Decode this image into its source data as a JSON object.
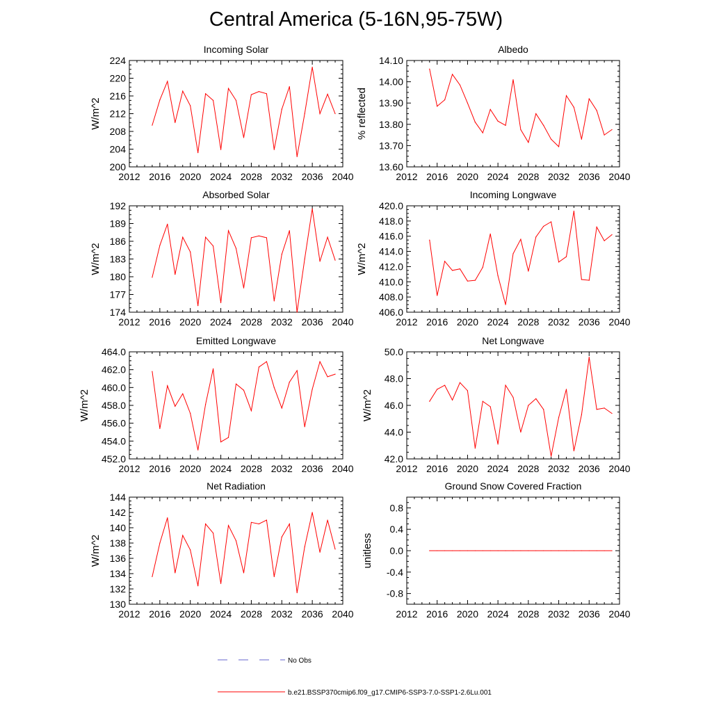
{
  "figure": {
    "title": "Central America (5-16N,95-75W)",
    "legend": {
      "entries": [
        {
          "label": "No Obs",
          "color": "#6666cc",
          "style": "dashed"
        },
        {
          "label": "b.e21.BSSP370cmip6.f09_g17.CMIP6-SSP3-7.0-SSP1-2.6Lu.001",
          "color": "#ff0000",
          "style": "solid"
        }
      ]
    }
  },
  "chart_data": [
    {
      "type": "line",
      "title": "Incoming Solar",
      "ylabel": "W/m^2",
      "xlim": [
        2012,
        2040
      ],
      "ylim": [
        200,
        224
      ],
      "xticks": [
        "2012",
        "2016",
        "2020",
        "2024",
        "2028",
        "2032",
        "2036",
        "2040"
      ],
      "yticks": [
        "200",
        "204",
        "208",
        "212",
        "216",
        "220",
        "224"
      ],
      "color": "#ff0000",
      "x": [
        2015,
        2016,
        2017,
        2018,
        2019,
        2020,
        2021,
        2022,
        2023,
        2024,
        2025,
        2026,
        2027,
        2028,
        2029,
        2030,
        2031,
        2032,
        2033,
        2034,
        2035,
        2036,
        2037,
        2038,
        2039
      ],
      "values": [
        209.4,
        215.1,
        219.3,
        210.0,
        217.1,
        213.8,
        203.2,
        216.5,
        215.0,
        203.9,
        217.7,
        215.0,
        206.6,
        216.3,
        217.0,
        216.5,
        203.9,
        213.0,
        218.1,
        202.3,
        212.0,
        222.5,
        212.0,
        216.4,
        212.0
      ]
    },
    {
      "type": "line",
      "title": "Albedo",
      "ylabel": "% reflected",
      "xlim": [
        2012,
        2040
      ],
      "ylim": [
        13.6,
        14.1
      ],
      "xticks": [
        "2012",
        "2016",
        "2020",
        "2024",
        "2028",
        "2032",
        "2036",
        "2040"
      ],
      "yticks": [
        "13.60",
        "13.70",
        "13.80",
        "13.90",
        "14.00",
        "14.10"
      ],
      "color": "#ff0000",
      "x": [
        2015,
        2016,
        2017,
        2018,
        2019,
        2020,
        2021,
        2022,
        2023,
        2024,
        2025,
        2026,
        2027,
        2028,
        2029,
        2030,
        2031,
        2032,
        2033,
        2034,
        2035,
        2036,
        2037,
        2038,
        2039
      ],
      "values": [
        14.06,
        13.885,
        13.915,
        14.035,
        13.985,
        13.9,
        13.81,
        13.76,
        13.87,
        13.815,
        13.795,
        14.01,
        13.775,
        13.715,
        13.85,
        13.795,
        13.73,
        13.695,
        13.935,
        13.88,
        13.73,
        13.92,
        13.865,
        13.75,
        13.775
      ]
    },
    {
      "type": "line",
      "title": "Absorbed Solar",
      "ylabel": "W/m^2",
      "xlim": [
        2012,
        2040
      ],
      "ylim": [
        174,
        192
      ],
      "xticks": [
        "2012",
        "2016",
        "2020",
        "2024",
        "2028",
        "2032",
        "2036",
        "2040"
      ],
      "yticks": [
        "174",
        "177",
        "180",
        "183",
        "186",
        "189",
        "192"
      ],
      "color": "#ff0000",
      "x": [
        2015,
        2016,
        2017,
        2018,
        2019,
        2020,
        2021,
        2022,
        2023,
        2024,
        2025,
        2026,
        2027,
        2028,
        2029,
        2030,
        2031,
        2032,
        2033,
        2034,
        2035,
        2036,
        2037,
        2038,
        2039
      ],
      "values": [
        179.9,
        185.3,
        188.9,
        180.4,
        186.7,
        184.2,
        175.1,
        186.7,
        185.2,
        175.6,
        187.8,
        184.8,
        178.1,
        186.6,
        186.9,
        186.6,
        175.9,
        183.8,
        187.8,
        174.0,
        183.0,
        191.5,
        182.6,
        186.7,
        182.8
      ]
    },
    {
      "type": "line",
      "title": "Incoming Longwave",
      "ylabel": "W/m^2",
      "xlim": [
        2012,
        2040
      ],
      "ylim": [
        406,
        420
      ],
      "xticks": [
        "2012",
        "2016",
        "2020",
        "2024",
        "2028",
        "2032",
        "2036",
        "2040"
      ],
      "yticks": [
        "406.0",
        "408.0",
        "410.0",
        "412.0",
        "414.0",
        "416.0",
        "418.0",
        "420.0"
      ],
      "color": "#ff0000",
      "x": [
        2015,
        2016,
        2017,
        2018,
        2019,
        2020,
        2021,
        2022,
        2023,
        2024,
        2025,
        2026,
        2027,
        2028,
        2029,
        2030,
        2031,
        2032,
        2033,
        2034,
        2035,
        2036,
        2037,
        2038,
        2039
      ],
      "values": [
        415.5,
        408.2,
        412.7,
        411.5,
        411.7,
        410.1,
        410.2,
        411.9,
        416.3,
        410.8,
        407.0,
        413.7,
        415.6,
        411.4,
        415.9,
        417.3,
        417.9,
        412.6,
        413.3,
        419.3,
        410.3,
        410.2,
        417.2,
        415.4,
        416.2
      ]
    },
    {
      "type": "line",
      "title": "Emitted Longwave",
      "ylabel": "W/m^2",
      "xlim": [
        2012,
        2040
      ],
      "ylim": [
        452,
        464
      ],
      "xticks": [
        "2012",
        "2016",
        "2020",
        "2024",
        "2028",
        "2032",
        "2036",
        "2040"
      ],
      "yticks": [
        "452.0",
        "454.0",
        "456.0",
        "458.0",
        "460.0",
        "462.0",
        "464.0"
      ],
      "color": "#ff0000",
      "x": [
        2015,
        2016,
        2017,
        2018,
        2019,
        2020,
        2021,
        2022,
        2023,
        2024,
        2025,
        2026,
        2027,
        2028,
        2029,
        2030,
        2031,
        2032,
        2033,
        2034,
        2035,
        2036,
        2037,
        2038,
        2039
      ],
      "values": [
        461.8,
        455.4,
        460.2,
        457.9,
        459.3,
        457.1,
        453.0,
        458.1,
        462.1,
        453.9,
        454.4,
        460.4,
        459.7,
        457.4,
        462.3,
        462.9,
        460.0,
        457.7,
        460.6,
        461.9,
        455.6,
        459.8,
        462.9,
        461.2,
        461.5
      ]
    },
    {
      "type": "line",
      "title": "Net Longwave",
      "ylabel": "W/m^2",
      "xlim": [
        2012,
        2040
      ],
      "ylim": [
        42,
        50
      ],
      "xticks": [
        "2012",
        "2016",
        "2020",
        "2024",
        "2028",
        "2032",
        "2036",
        "2040"
      ],
      "yticks": [
        "42.0",
        "44.0",
        "46.0",
        "48.0",
        "50.0"
      ],
      "color": "#ff0000",
      "x": [
        2015,
        2016,
        2017,
        2018,
        2019,
        2020,
        2021,
        2022,
        2023,
        2024,
        2025,
        2026,
        2027,
        2028,
        2029,
        2030,
        2031,
        2032,
        2033,
        2034,
        2035,
        2036,
        2037,
        2038,
        2039
      ],
      "values": [
        46.3,
        47.2,
        47.5,
        46.4,
        47.7,
        47.1,
        42.8,
        46.3,
        45.9,
        43.1,
        47.5,
        46.6,
        44.0,
        46.0,
        46.5,
        45.7,
        42.2,
        45.1,
        47.2,
        42.6,
        45.3,
        49.6,
        45.7,
        45.8,
        45.4
      ]
    },
    {
      "type": "line",
      "title": "Net Radiation",
      "ylabel": "W/m^2",
      "xlim": [
        2012,
        2040
      ],
      "ylim": [
        130,
        144
      ],
      "xticks": [
        "2012",
        "2016",
        "2020",
        "2024",
        "2028",
        "2032",
        "2036",
        "2040"
      ],
      "yticks": [
        "130",
        "132",
        "134",
        "136",
        "138",
        "140",
        "142",
        "144"
      ],
      "color": "#ff0000",
      "x": [
        2015,
        2016,
        2017,
        2018,
        2019,
        2020,
        2021,
        2022,
        2023,
        2024,
        2025,
        2026,
        2027,
        2028,
        2029,
        2030,
        2031,
        2032,
        2033,
        2034,
        2035,
        2036,
        2037,
        2038,
        2039
      ],
      "values": [
        133.6,
        138.0,
        141.3,
        134.1,
        139.0,
        137.1,
        132.4,
        140.5,
        139.3,
        132.7,
        140.3,
        138.3,
        134.1,
        140.7,
        140.5,
        141.0,
        133.6,
        138.8,
        140.5,
        131.5,
        137.5,
        142.0,
        136.8,
        141.0,
        137.2
      ]
    },
    {
      "type": "line",
      "title": "Ground Snow Covered Fraction",
      "ylabel": "unitless",
      "xlim": [
        2012,
        2040
      ],
      "ylim": [
        -1.0,
        1.0
      ],
      "xticks": [
        "2012",
        "2016",
        "2020",
        "2024",
        "2028",
        "2032",
        "2036",
        "2040"
      ],
      "yticks": [
        "-0.8",
        "-0.4",
        "0.0",
        "0.4",
        "0.8"
      ],
      "color": "#ff0000",
      "x": [
        2015,
        2016,
        2017,
        2018,
        2019,
        2020,
        2021,
        2022,
        2023,
        2024,
        2025,
        2026,
        2027,
        2028,
        2029,
        2030,
        2031,
        2032,
        2033,
        2034,
        2035,
        2036,
        2037,
        2038,
        2039
      ],
      "values": [
        0,
        0,
        0,
        0,
        0,
        0,
        0,
        0,
        0,
        0,
        0,
        0,
        0,
        0,
        0,
        0,
        0,
        0,
        0,
        0,
        0,
        0,
        0,
        0,
        0
      ]
    }
  ]
}
